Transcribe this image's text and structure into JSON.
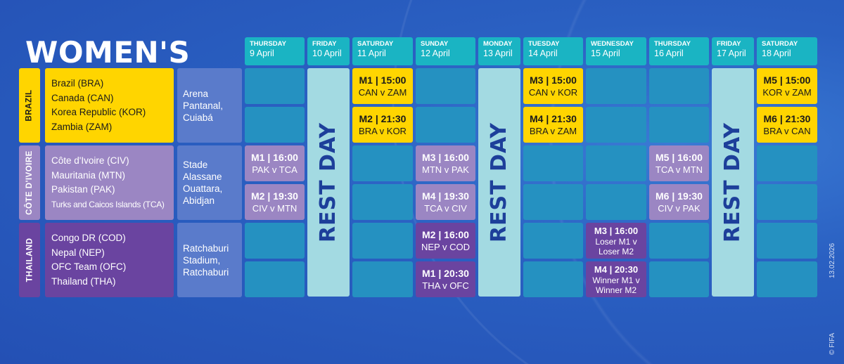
{
  "title": "WOMEN'S",
  "rest_label": "REST DAY",
  "days": [
    {
      "name": "THURSDAY",
      "date": "9 April"
    },
    {
      "name": "FRIDAY",
      "date": "10 April",
      "rest": true
    },
    {
      "name": "SATURDAY",
      "date": "11 April"
    },
    {
      "name": "SUNDAY",
      "date": "12 April"
    },
    {
      "name": "MONDAY",
      "date": "13 April",
      "rest": true
    },
    {
      "name": "TUESDAY",
      "date": "14 April"
    },
    {
      "name": "WEDNESDAY",
      "date": "15 April"
    },
    {
      "name": "THURSDAY",
      "date": "16 April"
    },
    {
      "name": "FRIDAY",
      "date": "17 April",
      "rest": true
    },
    {
      "name": "SATURDAY",
      "date": "18 April"
    }
  ],
  "groups": [
    {
      "host": "BRAZIL",
      "color": "#ffd500",
      "text_color": "#1a1a1a",
      "teams": [
        "Brazil (BRA)",
        "Canada (CAN)",
        "Korea Republic (KOR)",
        "Zambia (ZAM)"
      ],
      "venue": "Arena Pantanal, Cuiabá",
      "matches": [
        {
          "day": "11 April",
          "slot": 1,
          "title": "M1 | 15:00",
          "pairing": "CAN v ZAM"
        },
        {
          "day": "11 April",
          "slot": 2,
          "title": "M2 | 21:30",
          "pairing": "BRA v KOR"
        },
        {
          "day": "14 April",
          "slot": 1,
          "title": "M3 | 15:00",
          "pairing": "CAN v KOR"
        },
        {
          "day": "14 April",
          "slot": 2,
          "title": "M4 | 21:30",
          "pairing": "BRA v ZAM"
        },
        {
          "day": "18 April",
          "slot": 1,
          "title": "M5 | 15:00",
          "pairing": "KOR v ZAM"
        },
        {
          "day": "18 April",
          "slot": 2,
          "title": "M6 | 21:30",
          "pairing": "BRA v CAN"
        }
      ]
    },
    {
      "host": "CÔTE D'IVOIRE",
      "color": "#9b86c3",
      "text_color": "#ffffff",
      "teams": [
        "Côte d'Ivoire (CIV)",
        "Mauritania (MTN)",
        "Pakistan (PAK)",
        "Turks and Caicos Islands (TCA)"
      ],
      "venue": "Stade Alassane Ouattara, Abidjan",
      "matches": [
        {
          "day": "9 April",
          "slot": 1,
          "title": "M1 | 16:00",
          "pairing": "PAK v TCA"
        },
        {
          "day": "9 April",
          "slot": 2,
          "title": "M2 | 19:30",
          "pairing": "CIV v MTN"
        },
        {
          "day": "12 April",
          "slot": 1,
          "title": "M3 | 16:00",
          "pairing": "MTN v PAK"
        },
        {
          "day": "12 April",
          "slot": 2,
          "title": "M4 | 19:30",
          "pairing": "TCA v CIV"
        },
        {
          "day": "16 April",
          "slot": 1,
          "title": "M5 | 16:00",
          "pairing": "TCA v MTN"
        },
        {
          "day": "16 April",
          "slot": 2,
          "title": "M6 | 19:30",
          "pairing": "CIV v PAK"
        }
      ]
    },
    {
      "host": "THAILAND",
      "color": "#6a44a0",
      "text_color": "#ffffff",
      "teams": [
        "Congo DR (COD)",
        "Nepal (NEP)",
        "OFC Team (OFC)",
        "Thailand (THA)"
      ],
      "venue": "Ratchaburi Stadium, Ratchaburi",
      "matches": [
        {
          "day": "12 April",
          "slot": 1,
          "title": "M2 | 16:00",
          "pairing": "NEP v COD"
        },
        {
          "day": "12 April",
          "slot": 2,
          "title": "M1 | 20:30",
          "pairing": "THA v OFC"
        },
        {
          "day": "15 April",
          "slot": 1,
          "title": "M3 | 16:00",
          "pairing": "Loser M1 v Loser M2"
        },
        {
          "day": "15 April",
          "slot": 2,
          "title": "M4 | 20:30",
          "pairing": "Winner M1 v Winner M2"
        }
      ]
    }
  ],
  "footer": {
    "date": "13.02.2026",
    "copyright": "© FIFA"
  }
}
